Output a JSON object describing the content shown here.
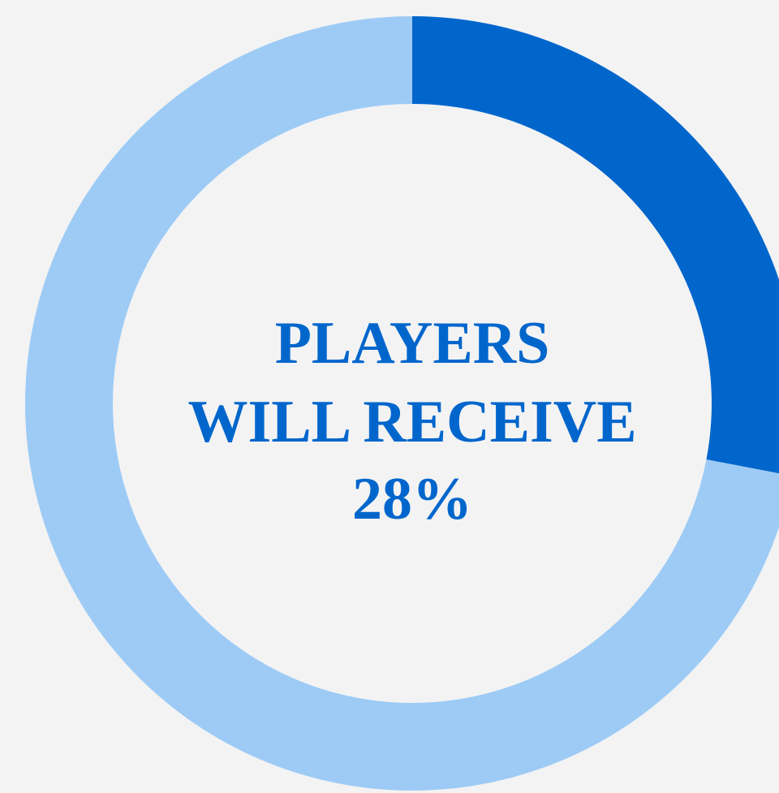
{
  "chart_data": {
    "type": "donut",
    "values": [
      28,
      72
    ],
    "colors": [
      "#0066cc",
      "#9dcbf5"
    ],
    "value_labels": [
      "28%",
      null
    ],
    "center_text": [
      "PLAYERS",
      "WILL RECEIVE"
    ],
    "start_angle": 0,
    "direction": "clockwise"
  }
}
